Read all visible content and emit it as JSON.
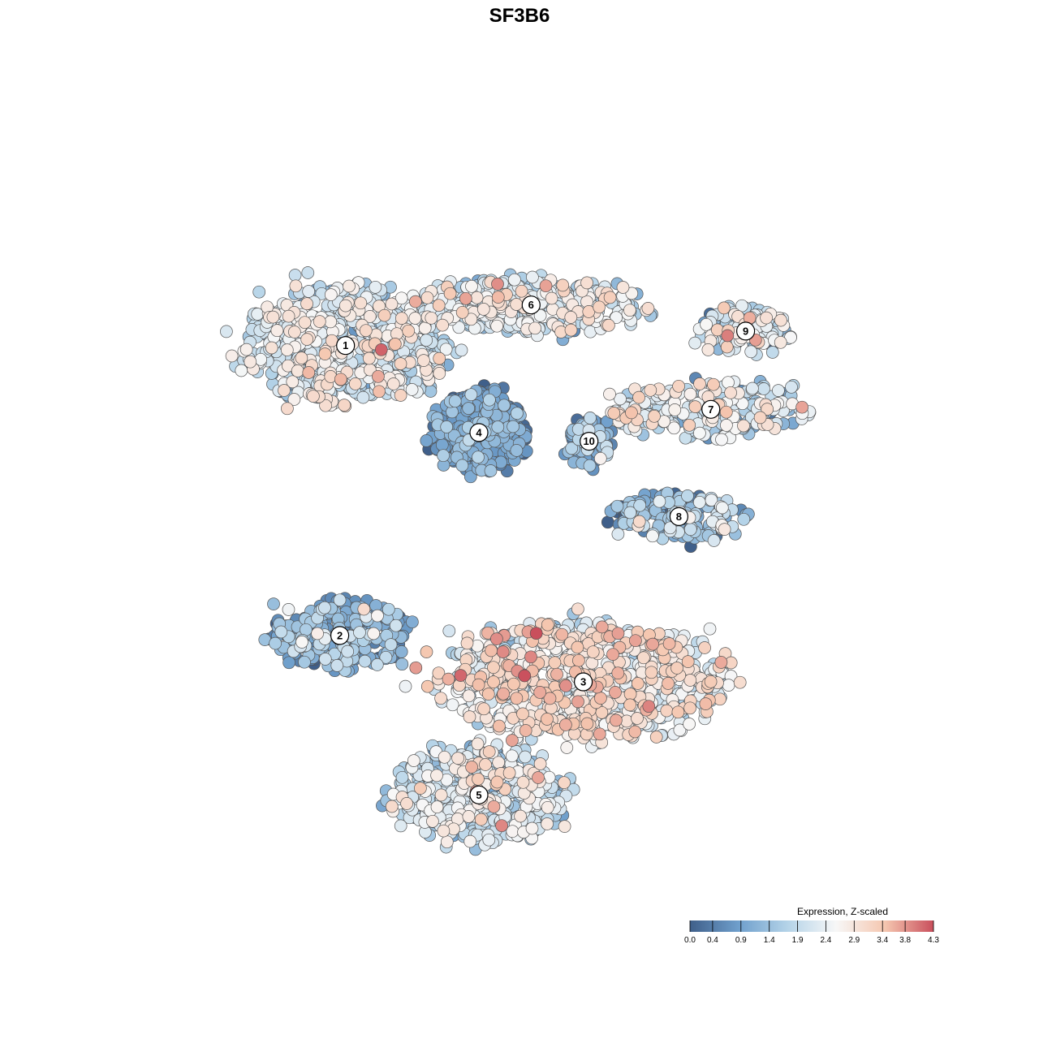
{
  "chart_data": {
    "type": "scatter",
    "title": "SF3B6",
    "xlabel": "",
    "ylabel": "",
    "color_scale": {
      "title": "Expression, Z-scaled",
      "min": 0.0,
      "max": 4.3,
      "ticks": [
        "0.0",
        "0.4",
        "0.9",
        "1.4",
        "1.9",
        "2.4",
        "2.9",
        "3.4",
        "3.8",
        "4.3"
      ],
      "colors": [
        "#3f5f8a",
        "#6f9fcc",
        "#b4d3e8",
        "#f7f7f7",
        "#f5c7b0",
        "#c94f5c"
      ]
    },
    "clusters": [
      {
        "label": "1",
        "x": -6.0,
        "y": 6.0,
        "sx": 3.2,
        "sy": 1.9,
        "n": 650,
        "mean": 2.1,
        "sd": 0.6
      },
      {
        "label": "6",
        "x": 0.4,
        "y": 7.4,
        "sx": 3.6,
        "sy": 0.9,
        "n": 380,
        "mean": 2.2,
        "sd": 0.6
      },
      {
        "label": "4",
        "x": -1.4,
        "y": 3.0,
        "sx": 1.5,
        "sy": 1.3,
        "n": 430,
        "mean": 0.6,
        "sd": 0.5
      },
      {
        "label": "10",
        "x": 2.4,
        "y": 2.7,
        "sx": 0.8,
        "sy": 0.8,
        "n": 80,
        "mean": 0.9,
        "sd": 0.6
      },
      {
        "label": "9",
        "x": 7.8,
        "y": 6.5,
        "sx": 1.6,
        "sy": 0.8,
        "n": 120,
        "mean": 2.0,
        "sd": 0.7
      },
      {
        "label": "7",
        "x": 6.6,
        "y": 3.8,
        "sx": 3.2,
        "sy": 0.9,
        "n": 280,
        "mean": 2.0,
        "sd": 0.7
      },
      {
        "label": "8",
        "x": 5.5,
        "y": 0.1,
        "sx": 2.2,
        "sy": 0.8,
        "n": 170,
        "mean": 1.2,
        "sd": 0.7
      },
      {
        "label": "2",
        "x": -6.2,
        "y": -4.0,
        "sx": 2.3,
        "sy": 1.2,
        "n": 250,
        "mean": 1.1,
        "sd": 0.6
      },
      {
        "label": "3",
        "x": 2.2,
        "y": -5.6,
        "sx": 4.6,
        "sy": 1.9,
        "n": 850,
        "mean": 2.6,
        "sd": 0.6
      },
      {
        "label": "5",
        "x": -1.4,
        "y": -9.5,
        "sx": 2.7,
        "sy": 1.6,
        "n": 500,
        "mean": 2.0,
        "sd": 0.6
      }
    ],
    "xlim": [
      -14,
      14
    ],
    "ylim": [
      -14,
      14
    ],
    "grid": false,
    "legend_position": "bottom-right"
  }
}
